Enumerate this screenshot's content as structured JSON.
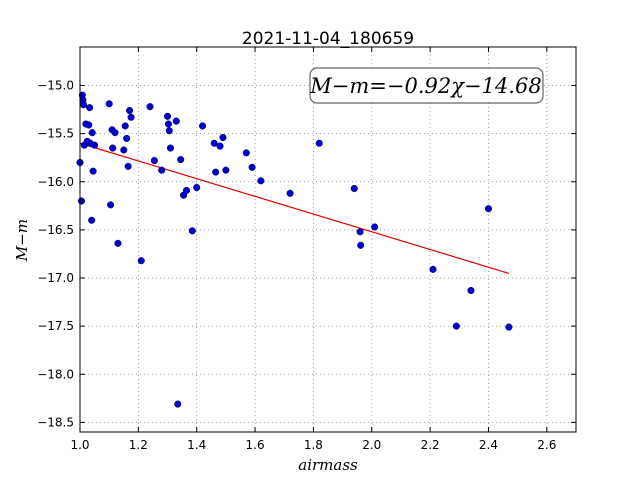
{
  "chart_data": {
    "type": "scatter",
    "title": "2021-11-04_180659",
    "xlabel": "airmass",
    "ylabel": "M−m",
    "xlim": [
      1.0,
      2.7
    ],
    "ylim": [
      -18.6,
      -14.6
    ],
    "y_inverted": true,
    "grid": true,
    "x_ticks": [
      "1.0",
      "1.2",
      "1.4",
      "1.6",
      "1.8",
      "2.0",
      "2.2",
      "2.4",
      "2.6"
    ],
    "y_ticks": [
      "−15.0",
      "−15.5",
      "−16.0",
      "−16.5",
      "−17.0",
      "−17.5",
      "−18.0",
      "−18.5"
    ],
    "annotation": "M−m=−0.92χ−14.68",
    "colors": {
      "points": "#0000cc",
      "fit": "#dd0000"
    },
    "fit_line": {
      "slope": -0.92,
      "intercept": -14.68,
      "x_range": [
        1.0,
        2.47
      ]
    },
    "points": [
      [
        1.0,
        -15.8
      ],
      [
        1.005,
        -16.2
      ],
      [
        1.008,
        -15.1
      ],
      [
        1.01,
        -15.15
      ],
      [
        1.012,
        -15.2
      ],
      [
        1.015,
        -15.62
      ],
      [
        1.02,
        -15.4
      ],
      [
        1.025,
        -15.58
      ],
      [
        1.03,
        -15.41
      ],
      [
        1.033,
        -15.23
      ],
      [
        1.035,
        -15.6
      ],
      [
        1.04,
        -16.4
      ],
      [
        1.042,
        -15.49
      ],
      [
        1.045,
        -15.89
      ],
      [
        1.05,
        -15.62
      ],
      [
        1.1,
        -15.19
      ],
      [
        1.105,
        -16.24
      ],
      [
        1.11,
        -15.46
      ],
      [
        1.112,
        -15.65
      ],
      [
        1.12,
        -15.49
      ],
      [
        1.13,
        -16.64
      ],
      [
        1.15,
        -15.67
      ],
      [
        1.155,
        -15.42
      ],
      [
        1.16,
        -15.55
      ],
      [
        1.165,
        -15.84
      ],
      [
        1.17,
        -15.26
      ],
      [
        1.175,
        -15.33
      ],
      [
        1.21,
        -16.82
      ],
      [
        1.24,
        -15.22
      ],
      [
        1.255,
        -15.78
      ],
      [
        1.28,
        -15.88
      ],
      [
        1.3,
        -15.32
      ],
      [
        1.303,
        -15.4
      ],
      [
        1.306,
        -15.47
      ],
      [
        1.31,
        -15.65
      ],
      [
        1.33,
        -15.37
      ],
      [
        1.335,
        -18.31
      ],
      [
        1.345,
        -15.77
      ],
      [
        1.355,
        -16.14
      ],
      [
        1.365,
        -16.09
      ],
      [
        1.385,
        -16.51
      ],
      [
        1.4,
        -16.06
      ],
      [
        1.42,
        -15.42
      ],
      [
        1.46,
        -15.6
      ],
      [
        1.465,
        -15.9
      ],
      [
        1.48,
        -15.63
      ],
      [
        1.49,
        -15.54
      ],
      [
        1.5,
        -15.88
      ],
      [
        1.57,
        -15.7
      ],
      [
        1.59,
        -15.85
      ],
      [
        1.62,
        -15.99
      ],
      [
        1.72,
        -16.12
      ],
      [
        1.82,
        -15.6
      ],
      [
        1.94,
        -16.07
      ],
      [
        1.96,
        -16.52
      ],
      [
        1.962,
        -16.66
      ],
      [
        2.01,
        -16.47
      ],
      [
        2.21,
        -16.91
      ],
      [
        2.29,
        -17.5
      ],
      [
        2.34,
        -17.13
      ],
      [
        2.4,
        -16.28
      ],
      [
        2.47,
        -17.51
      ]
    ]
  }
}
